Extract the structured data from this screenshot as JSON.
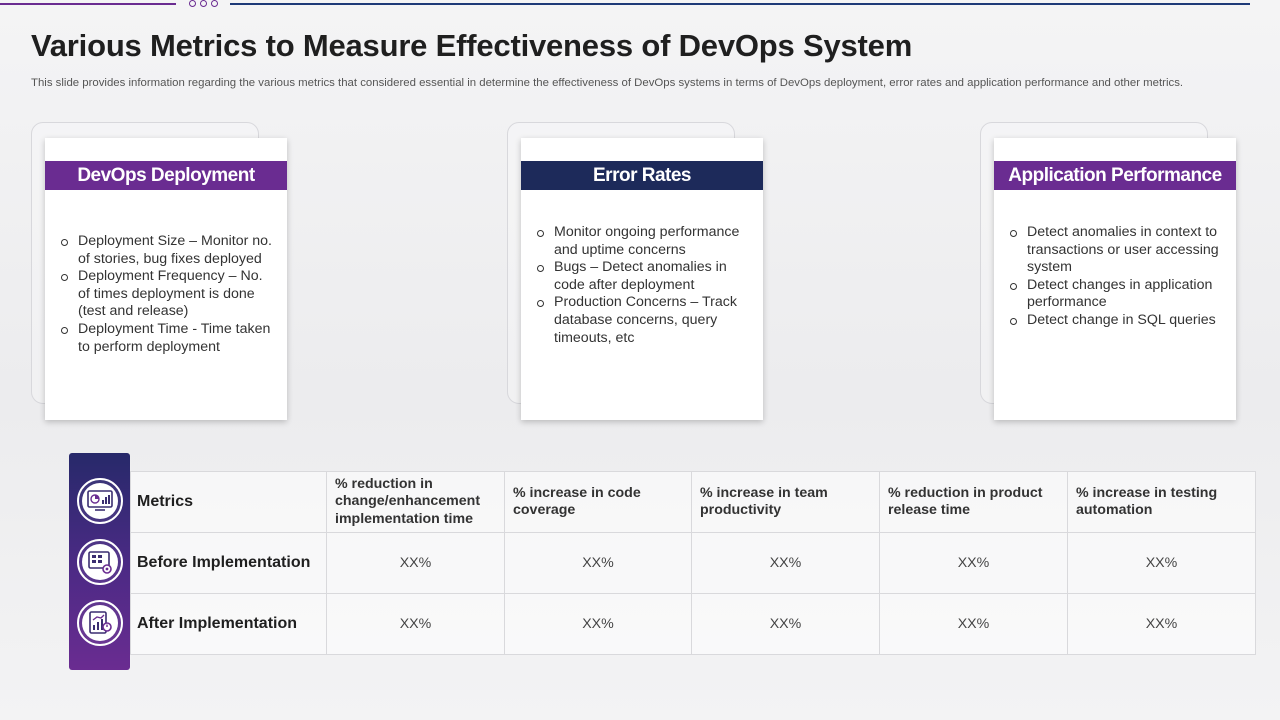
{
  "title": "Various Metrics to Measure Effectiveness of DevOps System",
  "subtitle": "This slide provides information regarding the various metrics that considered essential in determine the effectiveness of DevOps systems in terms of DevOps deployment, error rates and application performance and other metrics.",
  "colors": {
    "purple": "#6a2c91",
    "navy": "#1d2a5a"
  },
  "cards": [
    {
      "heading": "DevOps Deployment",
      "items": [
        "Deployment Size – Monitor no. of stories, bug fixes deployed",
        "Deployment Frequency – No. of times deployment is done (test and release)",
        "Deployment Time - Time taken to perform deployment"
      ]
    },
    {
      "heading": "Error Rates",
      "items": [
        "Monitor ongoing performance and uptime concerns",
        "Bugs – Detect anomalies in code after deployment",
        "Production Concerns – Track database concerns, query timeouts, etc"
      ]
    },
    {
      "heading": "Application Performance",
      "items": [
        "Detect anomalies in context to transactions or user accessing system",
        "Detect changes in application performance",
        "Detect change in SQL queries"
      ]
    }
  ],
  "table": {
    "icons": [
      "dashboard-icon",
      "settings-board-icon",
      "analytics-report-icon"
    ],
    "rows": [
      {
        "label": "Metrics",
        "cells": [
          "% reduction in change/enhancement implementation time",
          "% increase in code coverage",
          "% increase in team productivity",
          "% reduction in product release time",
          "% increase in testing automation"
        ]
      },
      {
        "label": "Before Implementation",
        "cells": [
          "XX%",
          "XX%",
          "XX%",
          "XX%",
          "XX%"
        ]
      },
      {
        "label": "After Implementation",
        "cells": [
          "XX%",
          "XX%",
          "XX%",
          "XX%",
          "XX%"
        ]
      }
    ]
  }
}
